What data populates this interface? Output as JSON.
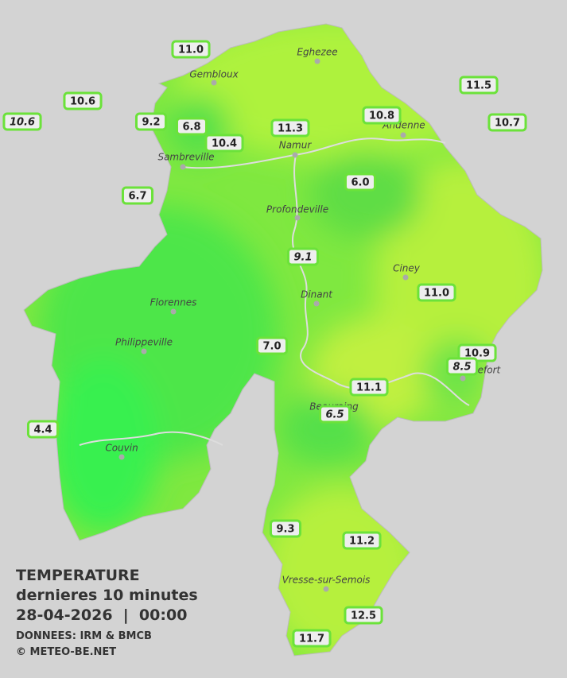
{
  "legend": {
    "title": "TEMPERATURE",
    "subtitle": "dernieres 10 minutes",
    "datetime": "28-04-2026  |  00:00",
    "source": "DONNEES: IRM & BMCB",
    "copyright": "© METEO-BE.NET"
  },
  "cities": [
    "Eghezee",
    "Gembloux",
    "Andenne",
    "Namur",
    "Sambreville",
    "Profondeville",
    "Ciney",
    "Dinant",
    "Florennes",
    "Philippeville",
    "Beauraing",
    "Rochefort",
    "Couvin",
    "Vresse-sur-Semois"
  ],
  "stations": [
    "11.0",
    "10.6",
    "10.6",
    "9.2",
    "6.8",
    "10.4",
    "11.3",
    "10.8",
    "11.5",
    "10.7",
    "6.7",
    "6.0",
    "9.1",
    "11.0",
    "7.0",
    "10.9",
    "8.5",
    "11.1",
    "6.5",
    "4.4",
    "9.3",
    "11.2",
    "12.5",
    "11.7"
  ]
}
